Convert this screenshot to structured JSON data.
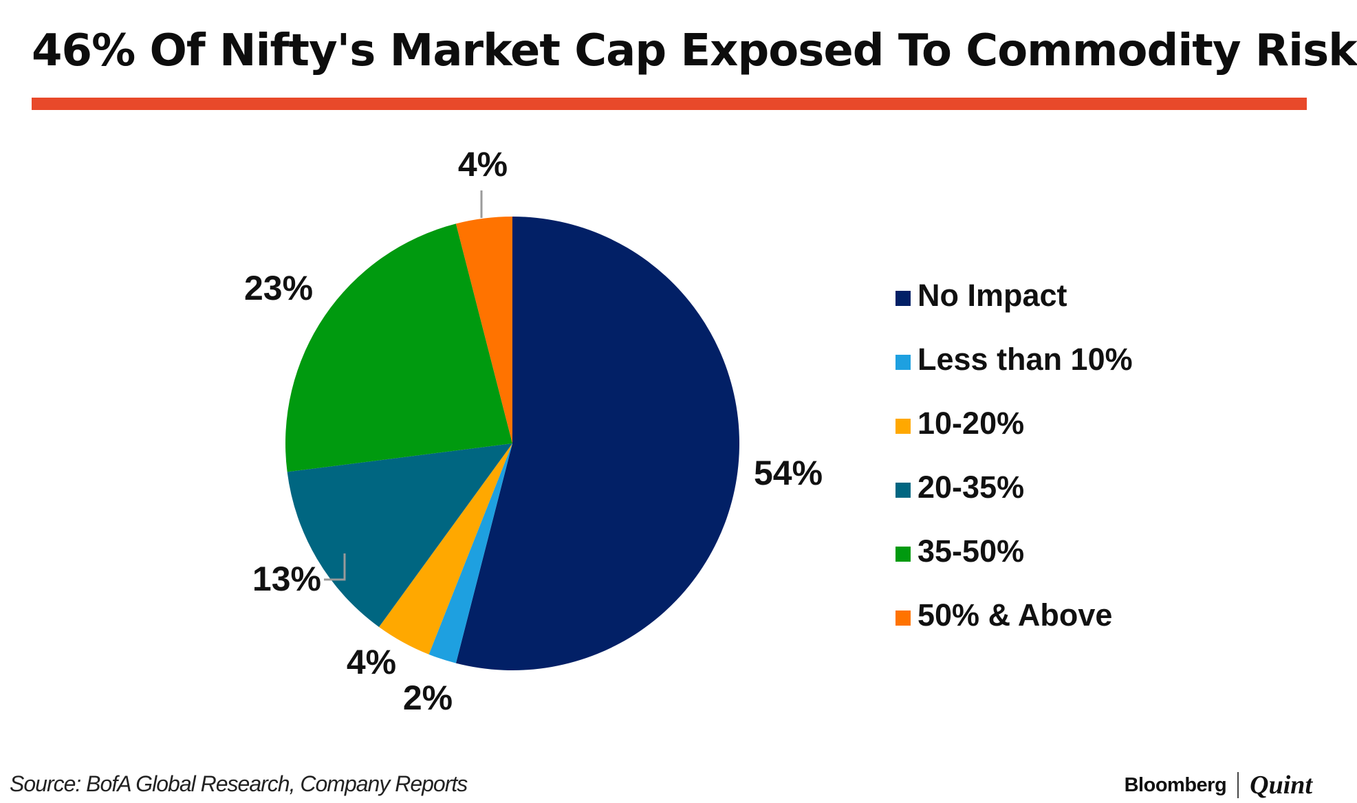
{
  "title": "46% Of Nifty's Market Cap Exposed To Commodity Risk",
  "accent_color": "#E8492A",
  "chart_data": {
    "type": "pie",
    "title": "46% Of Nifty's Market Cap Exposed To Commodity Risk",
    "slices": [
      {
        "label": "No Impact",
        "value": 54,
        "value_label": "54%",
        "color": "#022066"
      },
      {
        "label": "Less than 10%",
        "value": 2,
        "value_label": "2%",
        "color": "#1EA0E0"
      },
      {
        "label": "10-20%",
        "value": 4,
        "value_label": "4%",
        "color": "#FFA800"
      },
      {
        "label": "20-35%",
        "value": 13,
        "value_label": "13%",
        "color": "#006681"
      },
      {
        "label": "35-50%",
        "value": 23,
        "value_label": "23%",
        "color": "#009A0F"
      },
      {
        "label": "50% & Above",
        "value": 4,
        "value_label": "4%",
        "color": "#FF7300"
      }
    ],
    "start": "12 o'clock",
    "direction": "clockwise",
    "legend_position": "right"
  },
  "source": "Source: BofA Global Research, Company Reports",
  "branding": {
    "bloomberg": "Bloomberg",
    "quint": "Quint"
  }
}
